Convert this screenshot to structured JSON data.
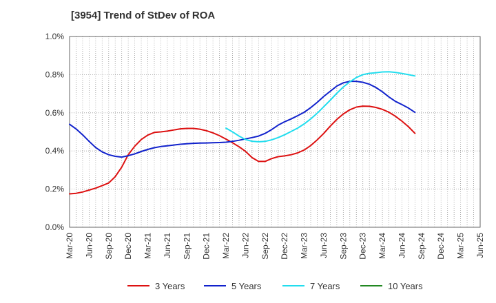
{
  "title": "[3954]  Trend of StDev of ROA",
  "chart_data": {
    "type": "line",
    "title": "[3954]  Trend of StDev of ROA",
    "xlabel": "",
    "ylabel": "",
    "ylim": [
      0,
      1.0
    ],
    "yticks": [
      "0.0%",
      "0.2%",
      "0.4%",
      "0.6%",
      "0.8%",
      "1.0%"
    ],
    "x_tick_labels": [
      "Mar-20",
      "Jun-20",
      "Sep-20",
      "Dec-20",
      "Mar-21",
      "Jun-21",
      "Sep-21",
      "Dec-21",
      "Mar-22",
      "Jun-22",
      "Sep-22",
      "Dec-22",
      "Mar-23",
      "Jun-23",
      "Sep-23",
      "Dec-23",
      "Mar-24",
      "Jun-24",
      "Sep-24",
      "Dec-24",
      "Mar-25",
      "Jun-25"
    ],
    "grid": true,
    "legend_position": "bottom",
    "series": [
      {
        "name": "3 Years",
        "color": "#dd1111",
        "points": [
          [
            "Mar-20",
            0.175
          ],
          [
            "Apr-20",
            0.178
          ],
          [
            "May-20",
            0.185
          ],
          [
            "Jun-20",
            0.195
          ],
          [
            "Jul-20",
            0.205
          ],
          [
            "Aug-20",
            0.218
          ],
          [
            "Sep-20",
            0.232
          ],
          [
            "Oct-20",
            0.265
          ],
          [
            "Nov-20",
            0.315
          ],
          [
            "Dec-20",
            0.38
          ],
          [
            "Jan-21",
            0.425
          ],
          [
            "Feb-21",
            0.46
          ],
          [
            "Mar-21",
            0.483
          ],
          [
            "Apr-21",
            0.497
          ],
          [
            "May-21",
            0.5
          ],
          [
            "Jun-21",
            0.504
          ],
          [
            "Jul-21",
            0.51
          ],
          [
            "Aug-21",
            0.516
          ],
          [
            "Sep-21",
            0.518
          ],
          [
            "Oct-21",
            0.518
          ],
          [
            "Nov-21",
            0.514
          ],
          [
            "Dec-21",
            0.506
          ],
          [
            "Jan-22",
            0.495
          ],
          [
            "Feb-22",
            0.48
          ],
          [
            "Mar-22",
            0.462
          ],
          [
            "Apr-22",
            0.443
          ],
          [
            "May-22",
            0.422
          ],
          [
            "Jun-22",
            0.398
          ],
          [
            "Jul-22",
            0.365
          ],
          [
            "Aug-22",
            0.345
          ],
          [
            "Sep-22",
            0.345
          ],
          [
            "Oct-22",
            0.36
          ],
          [
            "Nov-22",
            0.37
          ],
          [
            "Dec-22",
            0.374
          ],
          [
            "Jan-23",
            0.38
          ],
          [
            "Feb-23",
            0.39
          ],
          [
            "Mar-23",
            0.405
          ],
          [
            "Apr-23",
            0.428
          ],
          [
            "May-23",
            0.458
          ],
          [
            "Jun-23",
            0.492
          ],
          [
            "Jul-23",
            0.53
          ],
          [
            "Aug-23",
            0.565
          ],
          [
            "Sep-23",
            0.594
          ],
          [
            "Oct-23",
            0.616
          ],
          [
            "Nov-23",
            0.63
          ],
          [
            "Dec-23",
            0.635
          ],
          [
            "Jan-24",
            0.634
          ],
          [
            "Feb-24",
            0.628
          ],
          [
            "Mar-24",
            0.618
          ],
          [
            "Apr-24",
            0.603
          ],
          [
            "May-24",
            0.582
          ],
          [
            "Jun-24",
            0.556
          ],
          [
            "Jul-24",
            0.527
          ],
          [
            "Aug-24",
            0.492
          ]
        ]
      },
      {
        "name": "5 Years",
        "color": "#1122cc",
        "points": [
          [
            "Mar-20",
            0.54
          ],
          [
            "Apr-20",
            0.515
          ],
          [
            "May-20",
            0.485
          ],
          [
            "Jun-20",
            0.45
          ],
          [
            "Jul-20",
            0.418
          ],
          [
            "Aug-20",
            0.395
          ],
          [
            "Sep-20",
            0.38
          ],
          [
            "Oct-20",
            0.372
          ],
          [
            "Nov-20",
            0.368
          ],
          [
            "Dec-20",
            0.375
          ],
          [
            "Jan-21",
            0.385
          ],
          [
            "Feb-21",
            0.397
          ],
          [
            "Mar-21",
            0.408
          ],
          [
            "Apr-21",
            0.417
          ],
          [
            "May-21",
            0.423
          ],
          [
            "Jun-21",
            0.427
          ],
          [
            "Jul-21",
            0.431
          ],
          [
            "Aug-21",
            0.435
          ],
          [
            "Sep-21",
            0.438
          ],
          [
            "Oct-21",
            0.44
          ],
          [
            "Nov-21",
            0.441
          ],
          [
            "Dec-21",
            0.442
          ],
          [
            "Jan-22",
            0.443
          ],
          [
            "Feb-22",
            0.444
          ],
          [
            "Mar-22",
            0.446
          ],
          [
            "Apr-22",
            0.45
          ],
          [
            "May-22",
            0.456
          ],
          [
            "Jun-22",
            0.463
          ],
          [
            "Jul-22",
            0.47
          ],
          [
            "Aug-22",
            0.478
          ],
          [
            "Sep-22",
            0.492
          ],
          [
            "Oct-22",
            0.512
          ],
          [
            "Nov-22",
            0.535
          ],
          [
            "Dec-22",
            0.553
          ],
          [
            "Jan-23",
            0.568
          ],
          [
            "Feb-23",
            0.585
          ],
          [
            "Mar-23",
            0.603
          ],
          [
            "Apr-23",
            0.627
          ],
          [
            "May-23",
            0.655
          ],
          [
            "Jun-23",
            0.686
          ],
          [
            "Jul-23",
            0.713
          ],
          [
            "Aug-23",
            0.74
          ],
          [
            "Sep-23",
            0.757
          ],
          [
            "Oct-23",
            0.765
          ],
          [
            "Nov-23",
            0.765
          ],
          [
            "Dec-23",
            0.76
          ],
          [
            "Jan-24",
            0.75
          ],
          [
            "Feb-24",
            0.733
          ],
          [
            "Mar-24",
            0.71
          ],
          [
            "Apr-24",
            0.683
          ],
          [
            "May-24",
            0.66
          ],
          [
            "Jun-24",
            0.643
          ],
          [
            "Jul-24",
            0.625
          ],
          [
            "Aug-24",
            0.602
          ]
        ]
      },
      {
        "name": "7 Years",
        "color": "#22ddee",
        "points": [
          [
            "Mar-22",
            0.52
          ],
          [
            "Apr-22",
            0.5
          ],
          [
            "May-22",
            0.478
          ],
          [
            "Jun-22",
            0.46
          ],
          [
            "Jul-22",
            0.451
          ],
          [
            "Aug-22",
            0.448
          ],
          [
            "Sep-22",
            0.45
          ],
          [
            "Oct-22",
            0.458
          ],
          [
            "Nov-22",
            0.47
          ],
          [
            "Dec-22",
            0.485
          ],
          [
            "Jan-23",
            0.502
          ],
          [
            "Feb-23",
            0.52
          ],
          [
            "Mar-23",
            0.542
          ],
          [
            "Apr-23",
            0.568
          ],
          [
            "May-23",
            0.598
          ],
          [
            "Jun-23",
            0.632
          ],
          [
            "Jul-23",
            0.666
          ],
          [
            "Aug-23",
            0.702
          ],
          [
            "Sep-23",
            0.735
          ],
          [
            "Oct-23",
            0.762
          ],
          [
            "Nov-23",
            0.785
          ],
          [
            "Dec-23",
            0.8
          ],
          [
            "Jan-24",
            0.807
          ],
          [
            "Feb-24",
            0.81
          ],
          [
            "Mar-24",
            0.814
          ],
          [
            "Apr-24",
            0.815
          ],
          [
            "May-24",
            0.812
          ],
          [
            "Jun-24",
            0.806
          ],
          [
            "Jul-24",
            0.8
          ],
          [
            "Aug-24",
            0.793
          ]
        ]
      },
      {
        "name": "10 Years",
        "color": "#228822",
        "points": []
      }
    ]
  }
}
